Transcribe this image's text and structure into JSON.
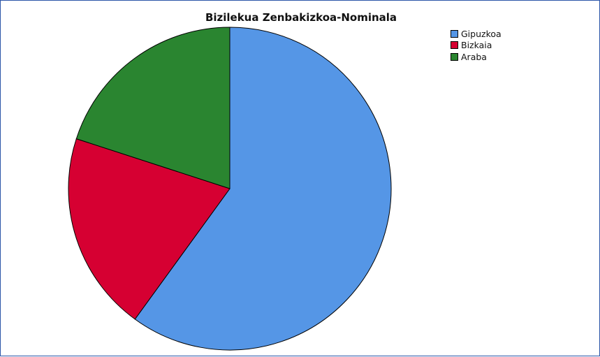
{
  "chart_data": {
    "type": "pie",
    "title": "Bizilekua Zenbakizkoa-Nominala",
    "categories": [
      "Gipuzkoa",
      "Bizkaia",
      "Araba"
    ],
    "values": [
      60,
      20,
      20
    ],
    "colors": [
      "#5596e6",
      "#d60032",
      "#2a8530"
    ],
    "start_angle_deg": 0,
    "direction": "clockwise",
    "legend_position": "top-right"
  }
}
